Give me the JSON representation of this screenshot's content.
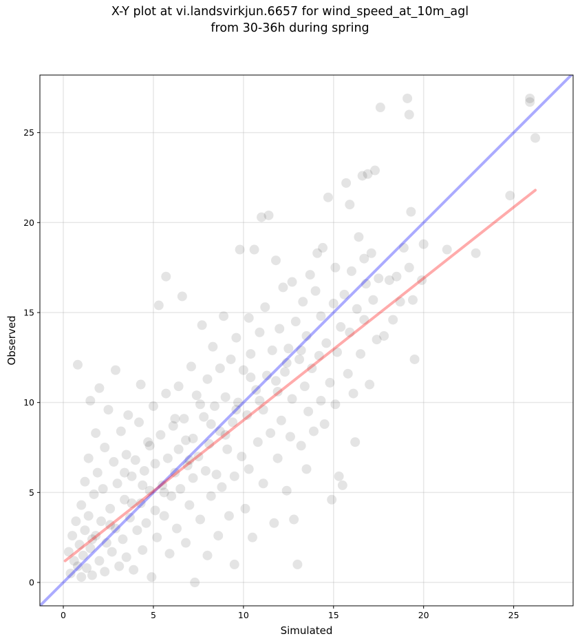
{
  "chart_data": {
    "type": "scatter",
    "title_line1": "X-Y plot at vi.landsvirkjun.6657 for wind_speed_at_10m_agl",
    "title_line2": "from 30-36h during spring",
    "xlabel": "Simulated",
    "ylabel": "Observed",
    "xlim": [
      -1.3,
      28.3
    ],
    "ylim": [
      -1.3,
      28.2
    ],
    "xticks": [
      0,
      5,
      10,
      15,
      20,
      25
    ],
    "yticks": [
      0,
      5,
      10,
      15,
      20,
      25
    ],
    "grid": true,
    "point_color": "#000000",
    "point_alpha": 0.08,
    "reference_line": {
      "name": "",
      "color": "#0000ff",
      "x": [
        -1.3,
        28.3
      ],
      "y": [
        -1.3,
        28.3
      ]
    },
    "fit_line": {
      "name": "",
      "color": "#ff0000",
      "x": [
        0.1,
        26.2
      ],
      "y": [
        1.2,
        21.8
      ]
    },
    "points": [
      [
        0.3,
        1.7
      ],
      [
        0.4,
        0.5
      ],
      [
        0.5,
        2.6
      ],
      [
        0.6,
        1.2
      ],
      [
        0.7,
        3.4
      ],
      [
        0.8,
        0.9
      ],
      [
        0.8,
        12.1
      ],
      [
        0.9,
        2.1
      ],
      [
        1.0,
        4.3
      ],
      [
        1.0,
        0.3
      ],
      [
        1.1,
        1.5
      ],
      [
        1.2,
        5.6
      ],
      [
        1.2,
        2.9
      ],
      [
        1.3,
        0.8
      ],
      [
        1.4,
        6.9
      ],
      [
        1.4,
        3.7
      ],
      [
        1.5,
        1.9
      ],
      [
        1.5,
        10.1
      ],
      [
        1.6,
        0.4
      ],
      [
        1.7,
        4.9
      ],
      [
        1.8,
        2.6
      ],
      [
        1.8,
        8.3
      ],
      [
        1.9,
        6.1
      ],
      [
        2.0,
        1.2
      ],
      [
        2.0,
        10.8
      ],
      [
        2.1,
        3.4
      ],
      [
        2.2,
        5.2
      ],
      [
        2.3,
        0.6
      ],
      [
        2.3,
        7.5
      ],
      [
        2.4,
        2.2
      ],
      [
        2.5,
        9.6
      ],
      [
        2.6,
        4.1
      ],
      [
        2.7,
        1.7
      ],
      [
        2.8,
        6.7
      ],
      [
        2.9,
        11.8
      ],
      [
        2.9,
        3.0
      ],
      [
        3.0,
        5.5
      ],
      [
        3.1,
        0.9
      ],
      [
        3.2,
        8.4
      ],
      [
        3.3,
        2.4
      ],
      [
        3.4,
        4.6
      ],
      [
        3.5,
        7.1
      ],
      [
        3.5,
        1.4
      ],
      [
        3.6,
        9.3
      ],
      [
        3.7,
        3.6
      ],
      [
        3.8,
        5.9
      ],
      [
        3.9,
        0.7
      ],
      [
        4.0,
        6.8
      ],
      [
        4.1,
        2.9
      ],
      [
        4.2,
        8.9
      ],
      [
        4.3,
        4.4
      ],
      [
        4.3,
        11.0
      ],
      [
        4.4,
        1.8
      ],
      [
        4.5,
        6.2
      ],
      [
        4.6,
        3.3
      ],
      [
        4.7,
        7.8
      ],
      [
        4.8,
        5.1
      ],
      [
        4.9,
        0.3
      ],
      [
        5.0,
        9.8
      ],
      [
        5.1,
        4.0
      ],
      [
        5.1,
        6.6
      ],
      [
        5.2,
        2.5
      ],
      [
        5.3,
        15.4
      ],
      [
        5.4,
        8.2
      ],
      [
        5.5,
        5.4
      ],
      [
        5.6,
        3.7
      ],
      [
        5.7,
        10.5
      ],
      [
        5.7,
        17.0
      ],
      [
        5.8,
        6.9
      ],
      [
        5.9,
        1.6
      ],
      [
        6.0,
        4.8
      ],
      [
        6.1,
        8.7
      ],
      [
        6.2,
        6.1
      ],
      [
        6.3,
        3.0
      ],
      [
        6.4,
        10.9
      ],
      [
        6.4,
        7.4
      ],
      [
        6.5,
        5.2
      ],
      [
        6.6,
        15.9
      ],
      [
        6.7,
        9.1
      ],
      [
        6.8,
        2.2
      ],
      [
        6.9,
        6.5
      ],
      [
        7.0,
        4.3
      ],
      [
        7.1,
        12.0
      ],
      [
        7.2,
        8.0
      ],
      [
        7.2,
        5.8
      ],
      [
        7.3,
        0.0
      ],
      [
        7.4,
        10.4
      ],
      [
        7.5,
        7.0
      ],
      [
        7.6,
        3.5
      ],
      [
        7.7,
        14.3
      ],
      [
        7.8,
        9.2
      ],
      [
        7.9,
        6.2
      ],
      [
        8.0,
        11.3
      ],
      [
        8.0,
        1.5
      ],
      [
        8.1,
        7.7
      ],
      [
        8.2,
        4.8
      ],
      [
        8.3,
        13.1
      ],
      [
        8.4,
        9.8
      ],
      [
        8.5,
        6.0
      ],
      [
        8.6,
        2.6
      ],
      [
        8.7,
        11.9
      ],
      [
        8.7,
        8.4
      ],
      [
        8.8,
        5.3
      ],
      [
        8.9,
        14.8
      ],
      [
        9.0,
        10.3
      ],
      [
        9.1,
        7.4
      ],
      [
        9.2,
        3.7
      ],
      [
        9.3,
        12.4
      ],
      [
        9.4,
        8.9
      ],
      [
        9.5,
        5.9
      ],
      [
        9.5,
        1.0
      ],
      [
        9.6,
        13.6
      ],
      [
        9.7,
        10.0
      ],
      [
        9.8,
        18.5
      ],
      [
        9.9,
        7.0
      ],
      [
        10.0,
        11.8
      ],
      [
        10.1,
        4.1
      ],
      [
        10.2,
        9.3
      ],
      [
        10.3,
        14.7
      ],
      [
        10.3,
        6.3
      ],
      [
        10.4,
        12.7
      ],
      [
        10.5,
        2.5
      ],
      [
        10.6,
        18.5
      ],
      [
        10.7,
        10.7
      ],
      [
        10.8,
        7.8
      ],
      [
        10.9,
        13.9
      ],
      [
        11.0,
        20.3
      ],
      [
        11.1,
        9.6
      ],
      [
        11.1,
        5.5
      ],
      [
        11.2,
        15.3
      ],
      [
        11.3,
        11.5
      ],
      [
        11.4,
        20.4
      ],
      [
        11.5,
        8.3
      ],
      [
        11.6,
        12.9
      ],
      [
        11.7,
        3.3
      ],
      [
        11.8,
        17.9
      ],
      [
        11.9,
        10.6
      ],
      [
        11.9,
        6.9
      ],
      [
        12.0,
        14.1
      ],
      [
        12.1,
        9.0
      ],
      [
        12.2,
        16.4
      ],
      [
        12.3,
        11.7
      ],
      [
        12.4,
        5.1
      ],
      [
        12.5,
        13.0
      ],
      [
        12.6,
        8.1
      ],
      [
        12.7,
        16.7
      ],
      [
        12.7,
        10.2
      ],
      [
        12.8,
        3.5
      ],
      [
        12.9,
        14.5
      ],
      [
        13.0,
        1.0
      ],
      [
        13.1,
        12.4
      ],
      [
        13.2,
        7.6
      ],
      [
        13.3,
        15.6
      ],
      [
        13.4,
        10.9
      ],
      [
        13.5,
        6.3
      ],
      [
        13.5,
        13.7
      ],
      [
        13.6,
        9.5
      ],
      [
        13.7,
        17.1
      ],
      [
        13.8,
        11.9
      ],
      [
        13.9,
        8.4
      ],
      [
        14.0,
        16.2
      ],
      [
        14.1,
        18.3
      ],
      [
        14.2,
        12.6
      ],
      [
        14.3,
        10.1
      ],
      [
        14.3,
        14.8
      ],
      [
        14.4,
        18.6
      ],
      [
        14.5,
        8.8
      ],
      [
        14.6,
        13.3
      ],
      [
        14.7,
        21.4
      ],
      [
        14.8,
        11.1
      ],
      [
        14.9,
        4.6
      ],
      [
        15.0,
        15.5
      ],
      [
        15.1,
        9.9
      ],
      [
        15.1,
        17.5
      ],
      [
        15.2,
        12.8
      ],
      [
        15.3,
        5.9
      ],
      [
        15.4,
        14.2
      ],
      [
        15.5,
        5.4
      ],
      [
        15.6,
        16.0
      ],
      [
        15.7,
        22.2
      ],
      [
        15.8,
        11.6
      ],
      [
        15.9,
        13.9
      ],
      [
        15.9,
        21.0
      ],
      [
        16.0,
        17.3
      ],
      [
        16.1,
        10.5
      ],
      [
        16.2,
        7.8
      ],
      [
        16.3,
        15.2
      ],
      [
        16.4,
        19.2
      ],
      [
        16.5,
        12.7
      ],
      [
        16.6,
        22.6
      ],
      [
        16.7,
        18.0
      ],
      [
        16.7,
        14.6
      ],
      [
        16.8,
        16.6
      ],
      [
        16.9,
        22.7
      ],
      [
        17.0,
        11.0
      ],
      [
        17.1,
        18.3
      ],
      [
        17.2,
        15.7
      ],
      [
        17.3,
        22.9
      ],
      [
        17.4,
        13.5
      ],
      [
        17.5,
        16.9
      ],
      [
        17.6,
        26.4
      ],
      [
        17.8,
        13.7
      ],
      [
        18.1,
        16.8
      ],
      [
        18.3,
        14.6
      ],
      [
        18.5,
        17.0
      ],
      [
        18.7,
        15.6
      ],
      [
        18.9,
        18.6
      ],
      [
        19.1,
        26.9
      ],
      [
        19.2,
        26.0
      ],
      [
        19.2,
        17.5
      ],
      [
        19.3,
        20.6
      ],
      [
        19.4,
        15.7
      ],
      [
        19.5,
        12.4
      ],
      [
        19.9,
        16.8
      ],
      [
        20.0,
        18.8
      ],
      [
        21.3,
        18.5
      ],
      [
        22.9,
        18.3
      ],
      [
        24.8,
        21.5
      ],
      [
        25.9,
        26.9
      ],
      [
        25.9,
        26.7
      ],
      [
        26.2,
        24.7
      ],
      [
        3.4,
        6.1
      ],
      [
        4.8,
        7.6
      ],
      [
        6.2,
        9.1
      ],
      [
        7.6,
        9.9
      ],
      [
        9.0,
        8.2
      ],
      [
        10.4,
        11.4
      ],
      [
        11.8,
        11.2
      ],
      [
        13.2,
        12.9
      ],
      [
        5.6,
        5.0
      ],
      [
        6.8,
        7.9
      ],
      [
        8.2,
        8.8
      ],
      [
        3.8,
        4.4
      ],
      [
        2.6,
        3.2
      ],
      [
        1.6,
        2.4
      ],
      [
        9.6,
        9.6
      ],
      [
        10.9,
        10.1
      ],
      [
        12.4,
        12.2
      ],
      [
        4.4,
        5.4
      ],
      [
        7.0,
        6.8
      ]
    ]
  }
}
